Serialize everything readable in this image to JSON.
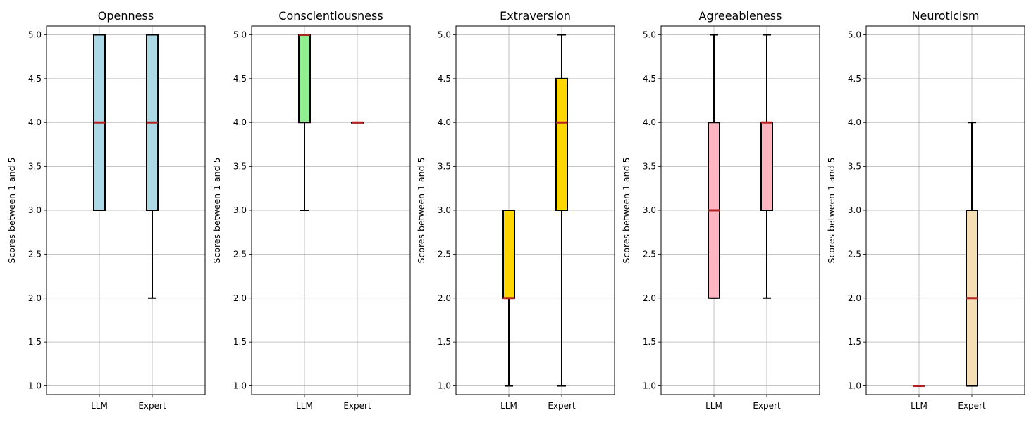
{
  "chart_data": [
    {
      "type": "box",
      "title": "Openness",
      "ylabel": "Scores between 1 and 5",
      "categories": [
        "LLM",
        "Expert"
      ],
      "ylim": [
        0.9,
        5.1
      ],
      "yticks": [
        "1.0",
        "1.5",
        "2.0",
        "2.5",
        "3.0",
        "3.5",
        "4.0",
        "4.5",
        "5.0"
      ],
      "grid": true,
      "box_color": "#add8e6",
      "boxes": [
        {
          "whisker_low": 3.0,
          "q1": 3.0,
          "median": 4.0,
          "q3": 5.0,
          "whisker_high": 5.0
        },
        {
          "whisker_low": 2.0,
          "q1": 3.0,
          "median": 4.0,
          "q3": 5.0,
          "whisker_high": 5.0
        }
      ]
    },
    {
      "type": "box",
      "title": "Conscientiousness",
      "ylabel": "Scores between 1 and 5",
      "categories": [
        "LLM",
        "Expert"
      ],
      "ylim": [
        0.9,
        5.1
      ],
      "yticks": [
        "1.0",
        "1.5",
        "2.0",
        "2.5",
        "3.0",
        "3.5",
        "4.0",
        "4.5",
        "5.0"
      ],
      "grid": true,
      "box_color": "#90ee90",
      "boxes": [
        {
          "whisker_low": 3.0,
          "q1": 4.0,
          "median": 5.0,
          "q3": 5.0,
          "whisker_high": 5.0
        },
        {
          "whisker_low": 4.0,
          "q1": 4.0,
          "median": 4.0,
          "q3": 4.0,
          "whisker_high": 4.0
        }
      ]
    },
    {
      "type": "box",
      "title": "Extraversion",
      "ylabel": "Scores between 1 and 5",
      "categories": [
        "LLM",
        "Expert"
      ],
      "ylim": [
        0.9,
        5.1
      ],
      "yticks": [
        "1.0",
        "1.5",
        "2.0",
        "2.5",
        "3.0",
        "3.5",
        "4.0",
        "4.5",
        "5.0"
      ],
      "grid": true,
      "box_color": "#ffd700",
      "boxes": [
        {
          "whisker_low": 1.0,
          "q1": 2.0,
          "median": 2.0,
          "q3": 3.0,
          "whisker_high": 3.0
        },
        {
          "whisker_low": 1.0,
          "q1": 3.0,
          "median": 4.0,
          "q3": 4.5,
          "whisker_high": 5.0
        }
      ]
    },
    {
      "type": "box",
      "title": "Agreeableness",
      "ylabel": "Scores between 1 and 5",
      "categories": [
        "LLM",
        "Expert"
      ],
      "ylim": [
        0.9,
        5.1
      ],
      "yticks": [
        "1.0",
        "1.5",
        "2.0",
        "2.5",
        "3.0",
        "3.5",
        "4.0",
        "4.5",
        "5.0"
      ],
      "grid": true,
      "box_color": "#ffb6c1",
      "boxes": [
        {
          "whisker_low": 2.0,
          "q1": 2.0,
          "median": 3.0,
          "q3": 4.0,
          "whisker_high": 5.0
        },
        {
          "whisker_low": 2.0,
          "q1": 3.0,
          "median": 4.0,
          "q3": 4.0,
          "whisker_high": 5.0
        }
      ]
    },
    {
      "type": "box",
      "title": "Neuroticism",
      "ylabel": "Scores between 1 and 5",
      "categories": [
        "LLM",
        "Expert"
      ],
      "ylim": [
        0.9,
        5.1
      ],
      "yticks": [
        "1.0",
        "1.5",
        "2.0",
        "2.5",
        "3.0",
        "3.5",
        "4.0",
        "4.5",
        "5.0"
      ],
      "grid": true,
      "box_color": "#f5deb3",
      "boxes": [
        {
          "whisker_low": 1.0,
          "q1": 1.0,
          "median": 1.0,
          "q3": 1.0,
          "whisker_high": 1.0
        },
        {
          "whisker_low": 1.0,
          "q1": 1.0,
          "median": 2.0,
          "q3": 3.0,
          "whisker_high": 4.0
        }
      ]
    }
  ],
  "style": {
    "median_color": "#b22222",
    "edge_color": "#000000",
    "grid_color": "#b0b0b0"
  }
}
